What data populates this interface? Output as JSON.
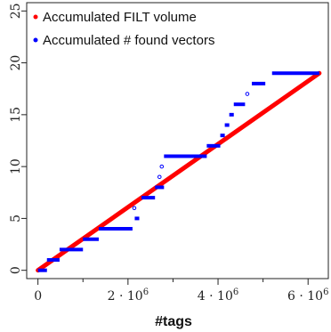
{
  "chart_data": {
    "type": "scatter",
    "xlabel": "#tags",
    "ylabel": "",
    "xlim": [
      -250000,
      6450000
    ],
    "ylim": [
      -0.8,
      25.8
    ],
    "grid": false,
    "legend_position": "top-left",
    "x_ticks": [
      {
        "value": 0,
        "base": "0",
        "exp": ""
      },
      {
        "value": 2000000,
        "base": "2 · 10",
        "exp": "6"
      },
      {
        "value": 4000000,
        "base": "4 · 10",
        "exp": "6"
      },
      {
        "value": 6000000,
        "base": "6 · 10",
        "exp": "6"
      }
    ],
    "y_ticks": [
      {
        "value": 0,
        "label": "0"
      },
      {
        "value": 5,
        "label": "5"
      },
      {
        "value": 10,
        "label": "10"
      },
      {
        "value": 15,
        "label": "15"
      },
      {
        "value": 20,
        "label": "20"
      },
      {
        "value": 25,
        "label": "25"
      }
    ],
    "x_minor_ticks": [
      1000000,
      3000000,
      5000000
    ],
    "series": [
      {
        "name": "Accumulated FILT volume",
        "color": "#ff0000",
        "kind": "line",
        "x": [
          0,
          6250000
        ],
        "y": [
          0,
          19
        ]
      },
      {
        "name": "Accumulated # found vectors",
        "color": "#0000ff",
        "kind": "steps",
        "segments": [
          {
            "x0": 0,
            "x1": 200000,
            "y": 0
          },
          {
            "x0": 200000,
            "x1": 480000,
            "y": 1
          },
          {
            "x0": 480000,
            "x1": 1000000,
            "y": 2
          },
          {
            "x0": 1000000,
            "x1": 1350000,
            "y": 3
          },
          {
            "x0": 1350000,
            "x1": 2100000,
            "y": 4
          },
          {
            "x0": 2150000,
            "x1": 2250000,
            "y": 5
          },
          {
            "x0": 2300000,
            "x1": 2600000,
            "y": 7
          },
          {
            "x0": 2600000,
            "x1": 2800000,
            "y": 8
          },
          {
            "x0": 2800000,
            "x1": 3750000,
            "y": 11
          },
          {
            "x0": 3750000,
            "x1": 4050000,
            "y": 12
          },
          {
            "x0": 4050000,
            "x1": 4150000,
            "y": 13
          },
          {
            "x0": 4150000,
            "x1": 4250000,
            "y": 14
          },
          {
            "x0": 4250000,
            "x1": 4350000,
            "y": 15
          },
          {
            "x0": 4350000,
            "x1": 4600000,
            "y": 16
          },
          {
            "x0": 4750000,
            "x1": 5050000,
            "y": 18
          },
          {
            "x0": 5200000,
            "x1": 6250000,
            "y": 19
          }
        ],
        "isolated_points": [
          {
            "x": 2140000,
            "y": 6
          },
          {
            "x": 2700000,
            "y": 9
          },
          {
            "x": 2750000,
            "y": 10
          },
          {
            "x": 4650000,
            "y": 17
          }
        ]
      }
    ]
  }
}
